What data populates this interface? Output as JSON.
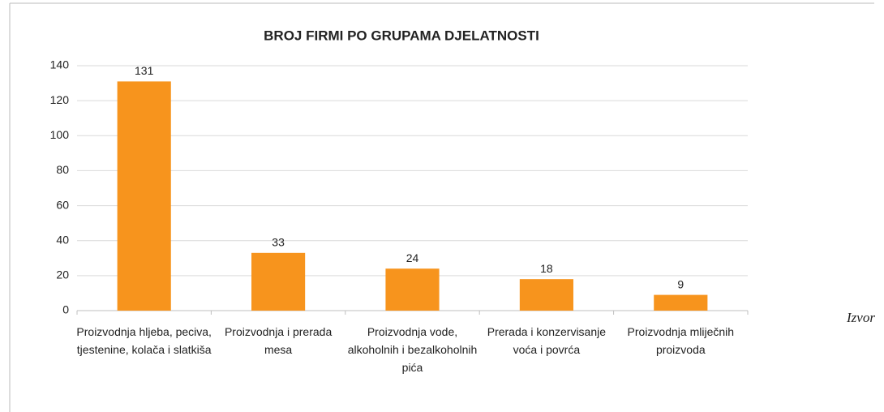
{
  "chart_data": {
    "type": "bar",
    "title": "BROJ FIRMI PO GRUPAMA DJELATNOSTI",
    "categories": [
      "Proizvodnja hljeba, peciva, tjestenine, kolača i slatkiša",
      "Proizvodnja i prerada mesa",
      "Proizvodnja vode, alkoholnih i bezalkoholnih pića",
      "Prerada i konzervisanje voća i povrća",
      "Proizvodnja mliječnih proizvoda"
    ],
    "values": [
      131,
      33,
      24,
      18,
      9
    ],
    "color": "#f7941d",
    "ylim": [
      0,
      140
    ],
    "yticks": [
      0,
      20,
      40,
      60,
      80,
      100,
      120,
      140
    ],
    "grid": true,
    "annotation": "Izvor"
  }
}
